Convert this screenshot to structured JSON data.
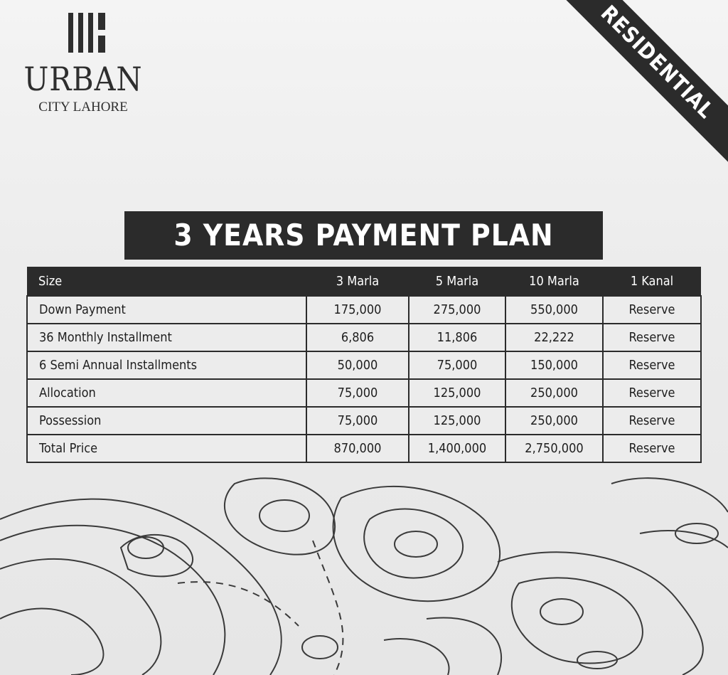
{
  "brand": {
    "name": "URBAN",
    "subtitle": "CITY LAHORE"
  },
  "ribbon": "RESIDENTIAL",
  "title": "3 YEARS PAYMENT PLAN",
  "table": {
    "headers": [
      "Size",
      "3 Marla",
      "5 Marla",
      "10 Marla",
      "1 Kanal"
    ],
    "rows": [
      [
        "Down Payment",
        "175,000",
        "275,000",
        "550,000",
        "Reserve"
      ],
      [
        "36 Monthly Installment",
        "6,806",
        "11,806",
        "22,222",
        "Reserve"
      ],
      [
        "6 Semi Annual Installments",
        "50,000",
        "75,000",
        "150,000",
        "Reserve"
      ],
      [
        "Allocation",
        "75,000",
        "125,000",
        "250,000",
        "Reserve"
      ],
      [
        "Possession",
        "75,000",
        "125,000",
        "250,000",
        "Reserve"
      ],
      [
        "Total Price",
        "870,000",
        "1,400,000",
        "2,750,000",
        "Reserve"
      ]
    ]
  },
  "colors": {
    "dark": "#2b2b2b",
    "background": "#ececec"
  }
}
